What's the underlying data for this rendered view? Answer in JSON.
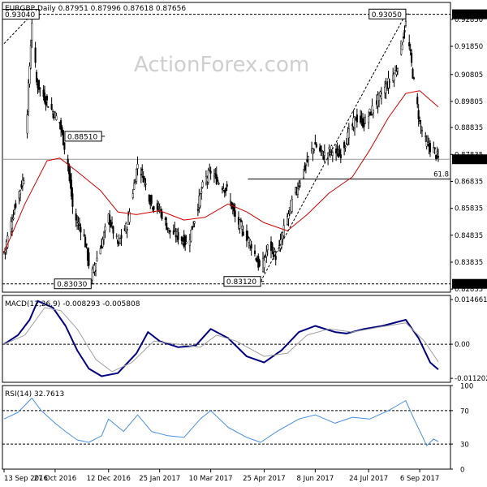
{
  "chart_data": [
    {
      "type": "candlestick",
      "symbol": "EURGBP",
      "timeframe": "Daily",
      "header": "EURGBP,Daily  0.87951 0.87996 0.87618 0.87656",
      "watermark": "ActionForex.com",
      "ylim": [
        0.8272,
        0.9348
      ],
      "yticks": [
        0.9285,
        0.9185,
        0.90805,
        0.89805,
        0.88835,
        0.87835,
        0.86835,
        0.85835,
        0.84835,
        0.83835,
        0.82835
      ],
      "ytick_labels": [
        "0.92850",
        "0.91850",
        "0.90805",
        "0.89805",
        "0.88835",
        "0.87835",
        "0.86835",
        "0.85835",
        "0.84835",
        "0.83835",
        "0.82835"
      ],
      "price_labels": [
        {
          "value": 0.9304,
          "text": "0.93040",
          "style": "black"
        },
        {
          "value": 0.87656,
          "text": "0.87656",
          "style": "dark"
        },
        {
          "value": 0.8303,
          "text": "0.83030",
          "style": "black"
        }
      ],
      "levels": [
        {
          "name": "high-level",
          "value": 0.9304,
          "dashed": true
        },
        {
          "name": "low-level",
          "value": 0.8303,
          "dashed": true
        },
        {
          "name": "current-price-line",
          "value": 0.87656,
          "dashed": false
        }
      ],
      "fib_line": {
        "value": 0.8692,
        "label": "61.8",
        "from_date": "2017-04-11"
      },
      "annotations": [
        {
          "text": "0.93040",
          "value": 0.9304,
          "date": "2016-10-07",
          "anchor": "right"
        },
        {
          "text": "0.88510",
          "value": 0.8851,
          "date": "2016-12-06",
          "anchor": "right"
        },
        {
          "text": "0.83030",
          "value": 0.8303,
          "date": "2016-11-27",
          "anchor": "right"
        },
        {
          "text": "0.83120",
          "value": 0.8312,
          "date": "2017-04-22",
          "anchor": "right"
        },
        {
          "text": "0.93050",
          "value": 0.9305,
          "date": "2017-08-25",
          "anchor": "right"
        }
      ],
      "trendlines": [
        {
          "from": {
            "date": "2016-09-13",
            "value": 0.9195
          },
          "to": {
            "date": "2016-10-07",
            "value": 0.9304
          }
        },
        {
          "from": {
            "date": "2017-04-22",
            "value": 0.8312
          },
          "to": {
            "date": "2017-08-25",
            "value": 0.9305
          }
        }
      ],
      "x_start": "2016-09-13",
      "x_end": "2017-09-22",
      "xtick_labels": [
        {
          "date": "2016-09-13",
          "text": "13 Sep 2016"
        },
        {
          "date": "2016-10-27",
          "text": "27 Oct 2016"
        },
        {
          "date": "2016-12-12",
          "text": "12 Dec 2016"
        },
        {
          "date": "2017-01-25",
          "text": "25 Jan 2017"
        },
        {
          "date": "2017-03-10",
          "text": "10 Mar 2017"
        },
        {
          "date": "2017-04-25",
          "text": "25 Apr 2017"
        },
        {
          "date": "2017-06-08",
          "text": "8 Jun 2017"
        },
        {
          "date": "2017-07-24",
          "text": "24 Jul 2017"
        },
        {
          "date": "2017-09-06",
          "text": "6 Sep 2017"
        }
      ],
      "price_path": [
        {
          "date": "2016-09-13",
          "value": 0.842
        },
        {
          "date": "2016-09-23",
          "value": 0.86
        },
        {
          "date": "2016-09-30",
          "value": 0.87
        },
        {
          "date": "2016-10-07",
          "value": 0.928
        },
        {
          "date": "2016-10-11",
          "value": 0.905
        },
        {
          "date": "2016-10-17",
          "value": 0.9
        },
        {
          "date": "2016-10-24",
          "value": 0.895
        },
        {
          "date": "2016-10-31",
          "value": 0.89
        },
        {
          "date": "2016-11-07",
          "value": 0.875
        },
        {
          "date": "2016-11-12",
          "value": 0.855
        },
        {
          "date": "2016-11-20",
          "value": 0.85
        },
        {
          "date": "2016-11-27",
          "value": 0.833
        },
        {
          "date": "2016-12-02",
          "value": 0.84
        },
        {
          "date": "2016-12-06",
          "value": 0.845
        },
        {
          "date": "2016-12-12",
          "value": 0.855
        },
        {
          "date": "2016-12-20",
          "value": 0.845
        },
        {
          "date": "2016-12-28",
          "value": 0.852
        },
        {
          "date": "2017-01-06",
          "value": 0.875
        },
        {
          "date": "2017-01-11",
          "value": 0.87
        },
        {
          "date": "2017-01-18",
          "value": 0.86
        },
        {
          "date": "2017-01-25",
          "value": 0.858
        },
        {
          "date": "2017-02-02",
          "value": 0.85
        },
        {
          "date": "2017-02-10",
          "value": 0.848
        },
        {
          "date": "2017-02-18",
          "value": 0.845
        },
        {
          "date": "2017-02-25",
          "value": 0.856
        },
        {
          "date": "2017-03-04",
          "value": 0.868
        },
        {
          "date": "2017-03-10",
          "value": 0.872
        },
        {
          "date": "2017-03-17",
          "value": 0.868
        },
        {
          "date": "2017-03-24",
          "value": 0.865
        },
        {
          "date": "2017-03-31",
          "value": 0.855
        },
        {
          "date": "2017-04-07",
          "value": 0.85
        },
        {
          "date": "2017-04-14",
          "value": 0.845
        },
        {
          "date": "2017-04-22",
          "value": 0.835
        },
        {
          "date": "2017-04-29",
          "value": 0.845
        },
        {
          "date": "2017-05-06",
          "value": 0.84
        },
        {
          "date": "2017-05-13",
          "value": 0.852
        },
        {
          "date": "2017-05-20",
          "value": 0.862
        },
        {
          "date": "2017-05-27",
          "value": 0.87
        },
        {
          "date": "2017-06-03",
          "value": 0.878
        },
        {
          "date": "2017-06-08",
          "value": 0.882
        },
        {
          "date": "2017-06-15",
          "value": 0.878
        },
        {
          "date": "2017-06-22",
          "value": 0.88
        },
        {
          "date": "2017-06-29",
          "value": 0.878
        },
        {
          "date": "2017-07-06",
          "value": 0.885
        },
        {
          "date": "2017-07-13",
          "value": 0.892
        },
        {
          "date": "2017-07-20",
          "value": 0.89
        },
        {
          "date": "2017-07-27",
          "value": 0.895
        },
        {
          "date": "2017-08-03",
          "value": 0.9
        },
        {
          "date": "2017-08-10",
          "value": 0.905
        },
        {
          "date": "2017-08-17",
          "value": 0.91
        },
        {
          "date": "2017-08-25",
          "value": 0.927
        },
        {
          "date": "2017-08-29",
          "value": 0.915
        },
        {
          "date": "2017-09-01",
          "value": 0.905
        },
        {
          "date": "2017-09-06",
          "value": 0.89
        },
        {
          "date": "2017-09-12",
          "value": 0.882
        },
        {
          "date": "2017-09-18",
          "value": 0.88
        },
        {
          "date": "2017-09-22",
          "value": 0.8766
        }
      ],
      "moving_average": [
        {
          "date": "2016-09-13",
          "value": 0.842
        },
        {
          "date": "2016-10-01",
          "value": 0.86
        },
        {
          "date": "2016-10-20",
          "value": 0.876
        },
        {
          "date": "2016-10-31",
          "value": 0.877
        },
        {
          "date": "2016-11-15",
          "value": 0.872
        },
        {
          "date": "2016-12-05",
          "value": 0.865
        },
        {
          "date": "2016-12-20",
          "value": 0.857
        },
        {
          "date": "2017-01-05",
          "value": 0.856
        },
        {
          "date": "2017-01-25",
          "value": 0.8575
        },
        {
          "date": "2017-02-15",
          "value": 0.854
        },
        {
          "date": "2017-03-05",
          "value": 0.855
        },
        {
          "date": "2017-03-25",
          "value": 0.86
        },
        {
          "date": "2017-04-10",
          "value": 0.857
        },
        {
          "date": "2017-04-25",
          "value": 0.853
        },
        {
          "date": "2017-05-15",
          "value": 0.85
        },
        {
          "date": "2017-06-01",
          "value": 0.856
        },
        {
          "date": "2017-06-20",
          "value": 0.864
        },
        {
          "date": "2017-07-10",
          "value": 0.87
        },
        {
          "date": "2017-07-25",
          "value": 0.88
        },
        {
          "date": "2017-08-10",
          "value": 0.892
        },
        {
          "date": "2017-08-25",
          "value": 0.901
        },
        {
          "date": "2017-09-06",
          "value": 0.902
        },
        {
          "date": "2017-09-22",
          "value": 0.896
        }
      ]
    },
    {
      "type": "line",
      "name": "MACD",
      "header": "MACD(12,26,9) -0.008293 -0.005808",
      "ylim": [
        -0.0125,
        0.016
      ],
      "ytick_labels": [
        {
          "value": 0.014661,
          "text": "0.014661"
        },
        {
          "value": 0.0,
          "text": "0.00"
        },
        {
          "value": -0.011202,
          "text": "-0.011202"
        }
      ],
      "zero_line": true,
      "series": [
        {
          "role": "macd",
          "color": "#000080",
          "points": [
            {
              "date": "2016-09-13",
              "value": 0.0
            },
            {
              "date": "2016-09-25",
              "value": 0.003
            },
            {
              "date": "2016-10-05",
              "value": 0.008
            },
            {
              "date": "2016-10-12",
              "value": 0.0142
            },
            {
              "date": "2016-10-25",
              "value": 0.012
            },
            {
              "date": "2016-11-05",
              "value": 0.006
            },
            {
              "date": "2016-11-15",
              "value": -0.002
            },
            {
              "date": "2016-11-25",
              "value": -0.008
            },
            {
              "date": "2016-12-06",
              "value": -0.0105
            },
            {
              "date": "2016-12-20",
              "value": -0.0095
            },
            {
              "date": "2017-01-05",
              "value": -0.003
            },
            {
              "date": "2017-01-15",
              "value": 0.004
            },
            {
              "date": "2017-01-25",
              "value": 0.001
            },
            {
              "date": "2017-02-10",
              "value": -0.001
            },
            {
              "date": "2017-02-25",
              "value": -0.0005
            },
            {
              "date": "2017-03-10",
              "value": 0.005
            },
            {
              "date": "2017-03-25",
              "value": 0.002
            },
            {
              "date": "2017-04-10",
              "value": -0.004
            },
            {
              "date": "2017-04-25",
              "value": -0.006
            },
            {
              "date": "2017-05-10",
              "value": -0.002
            },
            {
              "date": "2017-05-25",
              "value": 0.004
            },
            {
              "date": "2017-06-08",
              "value": 0.006
            },
            {
              "date": "2017-06-25",
              "value": 0.004
            },
            {
              "date": "2017-07-05",
              "value": 0.0035
            },
            {
              "date": "2017-07-20",
              "value": 0.005
            },
            {
              "date": "2017-08-05",
              "value": 0.006
            },
            {
              "date": "2017-08-25",
              "value": 0.008
            },
            {
              "date": "2017-09-05",
              "value": 0.002
            },
            {
              "date": "2017-09-15",
              "value": -0.006
            },
            {
              "date": "2017-09-22",
              "value": -0.0083
            }
          ]
        },
        {
          "role": "signal",
          "color": "#a0a0a0",
          "points": [
            {
              "date": "2016-09-13",
              "value": 0.0
            },
            {
              "date": "2016-10-01",
              "value": 0.003
            },
            {
              "date": "2016-10-18",
              "value": 0.012
            },
            {
              "date": "2016-11-01",
              "value": 0.011
            },
            {
              "date": "2016-11-15",
              "value": 0.005
            },
            {
              "date": "2016-12-01",
              "value": -0.005
            },
            {
              "date": "2016-12-15",
              "value": -0.009
            },
            {
              "date": "2017-01-01",
              "value": -0.006
            },
            {
              "date": "2017-01-20",
              "value": 0.001
            },
            {
              "date": "2017-02-10",
              "value": 0.0
            },
            {
              "date": "2017-03-01",
              "value": -0.001
            },
            {
              "date": "2017-03-15",
              "value": 0.003
            },
            {
              "date": "2017-04-01",
              "value": 0.001
            },
            {
              "date": "2017-04-25",
              "value": -0.004
            },
            {
              "date": "2017-05-15",
              "value": -0.003
            },
            {
              "date": "2017-06-01",
              "value": 0.003
            },
            {
              "date": "2017-06-20",
              "value": 0.005
            },
            {
              "date": "2017-07-10",
              "value": 0.004
            },
            {
              "date": "2017-08-01",
              "value": 0.0055
            },
            {
              "date": "2017-08-25",
              "value": 0.007
            },
            {
              "date": "2017-09-10",
              "value": 0.001
            },
            {
              "date": "2017-09-22",
              "value": -0.0058
            }
          ]
        }
      ]
    },
    {
      "type": "line",
      "name": "RSI",
      "header": "RSI(14) 32.7613",
      "ylim": [
        0,
        100
      ],
      "ytick_labels": [
        {
          "value": 100,
          "text": "100"
        },
        {
          "value": 70,
          "text": "70"
        },
        {
          "value": 30,
          "text": "30"
        },
        {
          "value": 0,
          "text": "0"
        }
      ],
      "levels": [
        70,
        30
      ],
      "series": [
        {
          "role": "rsi",
          "color": "#4a90e2",
          "points": [
            {
              "date": "2016-09-13",
              "value": 60
            },
            {
              "date": "2016-09-25",
              "value": 68
            },
            {
              "date": "2016-10-07",
              "value": 85
            },
            {
              "date": "2016-10-15",
              "value": 70
            },
            {
              "date": "2016-10-27",
              "value": 55
            },
            {
              "date": "2016-11-05",
              "value": 45
            },
            {
              "date": "2016-11-15",
              "value": 35
            },
            {
              "date": "2016-11-25",
              "value": 32
            },
            {
              "date": "2016-12-06",
              "value": 40
            },
            {
              "date": "2016-12-12",
              "value": 60
            },
            {
              "date": "2016-12-25",
              "value": 45
            },
            {
              "date": "2017-01-06",
              "value": 65
            },
            {
              "date": "2017-01-18",
              "value": 45
            },
            {
              "date": "2017-02-01",
              "value": 40
            },
            {
              "date": "2017-02-15",
              "value": 38
            },
            {
              "date": "2017-03-01",
              "value": 60
            },
            {
              "date": "2017-03-10",
              "value": 70
            },
            {
              "date": "2017-03-25",
              "value": 50
            },
            {
              "date": "2017-04-10",
              "value": 38
            },
            {
              "date": "2017-04-22",
              "value": 32
            },
            {
              "date": "2017-05-06",
              "value": 45
            },
            {
              "date": "2017-05-25",
              "value": 60
            },
            {
              "date": "2017-06-08",
              "value": 65
            },
            {
              "date": "2017-06-25",
              "value": 55
            },
            {
              "date": "2017-07-10",
              "value": 62
            },
            {
              "date": "2017-07-25",
              "value": 60
            },
            {
              "date": "2017-08-10",
              "value": 70
            },
            {
              "date": "2017-08-25",
              "value": 82
            },
            {
              "date": "2017-09-01",
              "value": 60
            },
            {
              "date": "2017-09-08",
              "value": 40
            },
            {
              "date": "2017-09-12",
              "value": 28
            },
            {
              "date": "2017-09-18",
              "value": 36
            },
            {
              "date": "2017-09-22",
              "value": 33
            }
          ]
        }
      ]
    }
  ]
}
